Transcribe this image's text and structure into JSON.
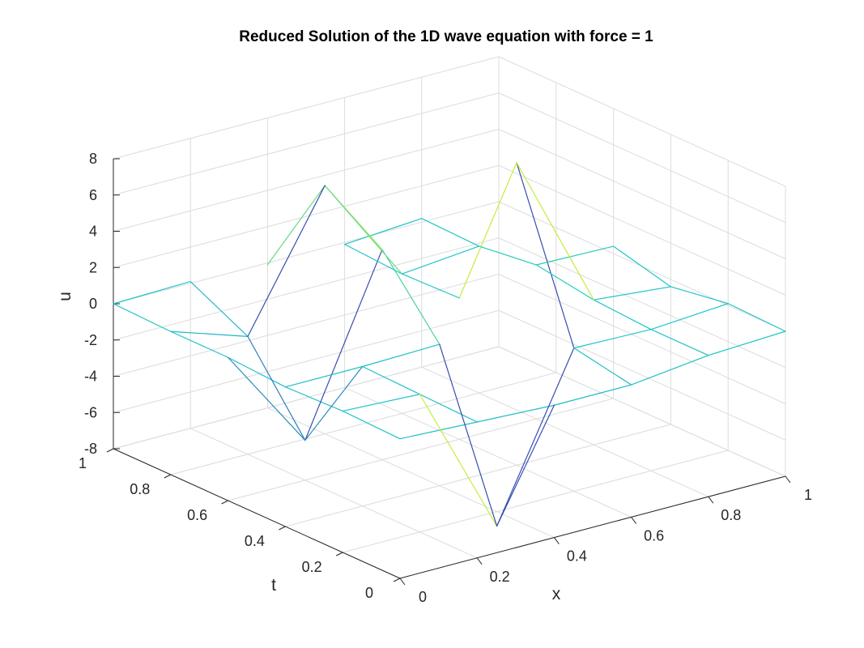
{
  "chart_data": {
    "type": "mesh",
    "title": "Reduced Solution of the 1D wave equation with force = 1",
    "xlabel": "x",
    "ylabel": "t",
    "zlabel": "u",
    "xlim": [
      0,
      1
    ],
    "ylim": [
      0,
      1
    ],
    "zlim": [
      -8,
      8
    ],
    "x_ticks": [
      {
        "v": 0,
        "label": "0"
      },
      {
        "v": 0.2,
        "label": "0.2"
      },
      {
        "v": 0.4,
        "label": "0.4"
      },
      {
        "v": 0.6,
        "label": "0.6"
      },
      {
        "v": 0.8,
        "label": "0.8"
      },
      {
        "v": 1,
        "label": "1"
      }
    ],
    "y_ticks": [
      {
        "v": 0,
        "label": "0"
      },
      {
        "v": 0.2,
        "label": "0.2"
      },
      {
        "v": 0.4,
        "label": "0.4"
      },
      {
        "v": 0.6,
        "label": "0.6"
      },
      {
        "v": 0.8,
        "label": "0.8"
      },
      {
        "v": 1,
        "label": "1"
      }
    ],
    "z_ticks": [
      {
        "v": -8,
        "label": "-8"
      },
      {
        "v": -6,
        "label": "-6"
      },
      {
        "v": -4,
        "label": "-4"
      },
      {
        "v": -2,
        "label": "-2"
      },
      {
        "v": 0,
        "label": "0"
      },
      {
        "v": 2,
        "label": "2"
      },
      {
        "v": 4,
        "label": "4"
      },
      {
        "v": 6,
        "label": "6"
      },
      {
        "v": 8,
        "label": "8"
      }
    ],
    "grid": true,
    "colormap": {
      "low": "#3e26a8",
      "mid": "#1fc7c7",
      "high": "#f9fb0e"
    },
    "edges": [
      {
        "from": [
          0,
          1,
          0
        ],
        "to": [
          0.2,
          1,
          0.1
        ]
      },
      {
        "from": [
          0.2,
          1,
          0.1
        ],
        "to": [
          0.2,
          0.8,
          -1.5
        ]
      },
      {
        "from": [
          0,
          1,
          0
        ],
        "to": [
          0,
          0.8,
          -0.1
        ]
      },
      {
        "from": [
          0,
          0.8,
          -0.1
        ],
        "to": [
          0,
          0.6,
          -0.1
        ]
      },
      {
        "from": [
          0,
          0.6,
          -0.1
        ],
        "to": [
          0,
          0.4,
          -0.3
        ]
      },
      {
        "from": [
          0,
          0.4,
          -0.3
        ],
        "to": [
          0,
          0.2,
          -0.2
        ]
      },
      {
        "from": [
          0,
          0.2,
          -0.2
        ],
        "to": [
          0,
          0,
          -0.3
        ]
      },
      {
        "from": [
          0,
          0,
          -0.3
        ],
        "to": [
          0.2,
          0,
          -0.5
        ]
      },
      {
        "from": [
          0.2,
          0,
          -0.5
        ],
        "to": [
          0.4,
          0,
          -0.7
        ]
      },
      {
        "from": [
          0.4,
          0,
          -0.7
        ],
        "to": [
          0.6,
          0,
          -0.7
        ]
      },
      {
        "from": [
          0.6,
          0,
          -0.7
        ],
        "to": [
          0.8,
          0,
          -0.2
        ]
      },
      {
        "from": [
          0.8,
          0,
          -0.2
        ],
        "to": [
          1,
          0,
          0
        ]
      },
      {
        "from": [
          1,
          0,
          0
        ],
        "to": [
          1,
          0.2,
          0.1
        ]
      },
      {
        "from": [
          1,
          0.2,
          0.1
        ],
        "to": [
          0.8,
          0.2,
          -0.2
        ]
      },
      {
        "from": [
          1,
          0.2,
          0.1
        ],
        "to": [
          1,
          0.4,
          -0.4
        ]
      },
      {
        "from": [
          1,
          0.4,
          -0.4
        ],
        "to": [
          1,
          0.6,
          0.4
        ]
      },
      {
        "from": [
          0,
          0.8,
          -0.1
        ],
        "to": [
          0.2,
          0.8,
          -1.5
        ]
      },
      {
        "from": [
          0.2,
          0.8,
          -1.5
        ],
        "to": [
          0.2,
          0.6,
          -5.8
        ]
      },
      {
        "from": [
          0,
          0.6,
          -0.1
        ],
        "to": [
          0.2,
          0.6,
          -5.8
        ]
      },
      {
        "from": [
          0.2,
          0.6,
          -5.8
        ],
        "to": [
          0.4,
          0.6,
          3.6
        ]
      },
      {
        "from": [
          0.2,
          0.6,
          -5.8
        ],
        "to": [
          0.2,
          0.4,
          -0.3
        ]
      },
      {
        "from": [
          0.4,
          0.6,
          3.6
        ],
        "to": [
          0.4,
          0.4,
          -0.2
        ]
      },
      {
        "from": [
          0.2,
          0.4,
          -0.3
        ],
        "to": [
          0.4,
          0.4,
          -0.2
        ]
      },
      {
        "from": [
          0,
          0.4,
          -0.3
        ],
        "to": [
          0.2,
          0.4,
          -0.3
        ]
      },
      {
        "from": [
          0.2,
          0.4,
          -0.3
        ],
        "to": [
          0.2,
          0.2,
          -0.4
        ]
      },
      {
        "from": [
          0,
          0.2,
          -0.2
        ],
        "to": [
          0.2,
          0.2,
          -0.4
        ]
      },
      {
        "from": [
          0.2,
          0.2,
          -0.4
        ],
        "to": [
          0.2,
          0,
          -0.5
        ]
      },
      {
        "from": [
          0.2,
          0.2,
          -0.4
        ],
        "to": [
          0.4,
          0.2,
          -8.8
        ]
      },
      {
        "from": [
          0.4,
          0.2,
          -8.8
        ],
        "to": [
          0.4,
          0,
          -0.7
        ]
      },
      {
        "from": [
          0.4,
          0.2,
          -8.8
        ],
        "to": [
          0.6,
          0.2,
          -0.1
        ]
      },
      {
        "from": [
          0.6,
          0.2,
          -0.1
        ],
        "to": [
          0.6,
          0,
          -0.7
        ]
      },
      {
        "from": [
          0.4,
          0.2,
          -8.8
        ],
        "to": [
          0.4,
          0.4,
          -0.2
        ]
      },
      {
        "from": [
          0.6,
          0.2,
          -0.1
        ],
        "to": [
          0.6,
          0.4,
          8.7
        ]
      },
      {
        "from": [
          0.6,
          0.4,
          8.7
        ],
        "to": [
          0.6,
          0.6,
          -0.2
        ]
      },
      {
        "from": [
          0.6,
          0.2,
          -0.1
        ],
        "to": [
          0.8,
          0.2,
          -0.2
        ]
      },
      {
        "from": [
          0.8,
          0.2,
          -0.2
        ],
        "to": [
          0.8,
          0,
          -0.2
        ]
      },
      {
        "from": [
          0.8,
          0.2,
          -0.2
        ],
        "to": [
          0.8,
          0.4,
          0
        ]
      },
      {
        "from": [
          0.8,
          0.4,
          0
        ],
        "to": [
          1,
          0.4,
          -0.4
        ]
      },
      {
        "from": [
          0.6,
          0.6,
          -0.2
        ],
        "to": [
          0.6,
          0.8,
          -0.3
        ]
      },
      {
        "from": [
          0.6,
          0.8,
          -0.3
        ],
        "to": [
          0.6,
          1,
          -0.1
        ]
      },
      {
        "from": [
          0.6,
          1,
          -0.1
        ],
        "to": [
          0.8,
          1,
          0.2
        ]
      },
      {
        "from": [
          0.4,
          0.6,
          3.6
        ],
        "to": [
          0.4,
          0.8,
          5.7
        ]
      },
      {
        "from": [
          0.4,
          0.8,
          5.7
        ],
        "to": [
          0.4,
          1,
          -0.1
        ]
      },
      {
        "from": [
          0.4,
          0.8,
          5.7
        ],
        "to": [
          0.6,
          0.8,
          -0.3
        ]
      },
      {
        "from": [
          0.2,
          0.8,
          -1.5
        ],
        "to": [
          0.4,
          0.8,
          5.7
        ]
      },
      {
        "from": [
          0.8,
          0.4,
          0
        ],
        "to": [
          0.8,
          0.6,
          0.5
        ]
      },
      {
        "from": [
          0.8,
          0.6,
          0.5
        ],
        "to": [
          1,
          0.6,
          0.4
        ]
      },
      {
        "from": [
          0.8,
          0.6,
          0.5
        ],
        "to": [
          0.8,
          0.8,
          0.1
        ]
      },
      {
        "from": [
          0.8,
          0.8,
          0.1
        ],
        "to": [
          0.8,
          1,
          0.2
        ]
      },
      {
        "from": [
          0.6,
          0.8,
          -0.3
        ],
        "to": [
          0.8,
          0.8,
          0.1
        ]
      },
      {
        "from": [
          0.6,
          0.4,
          8.7
        ],
        "to": [
          0.8,
          0.4,
          0
        ]
      }
    ]
  }
}
